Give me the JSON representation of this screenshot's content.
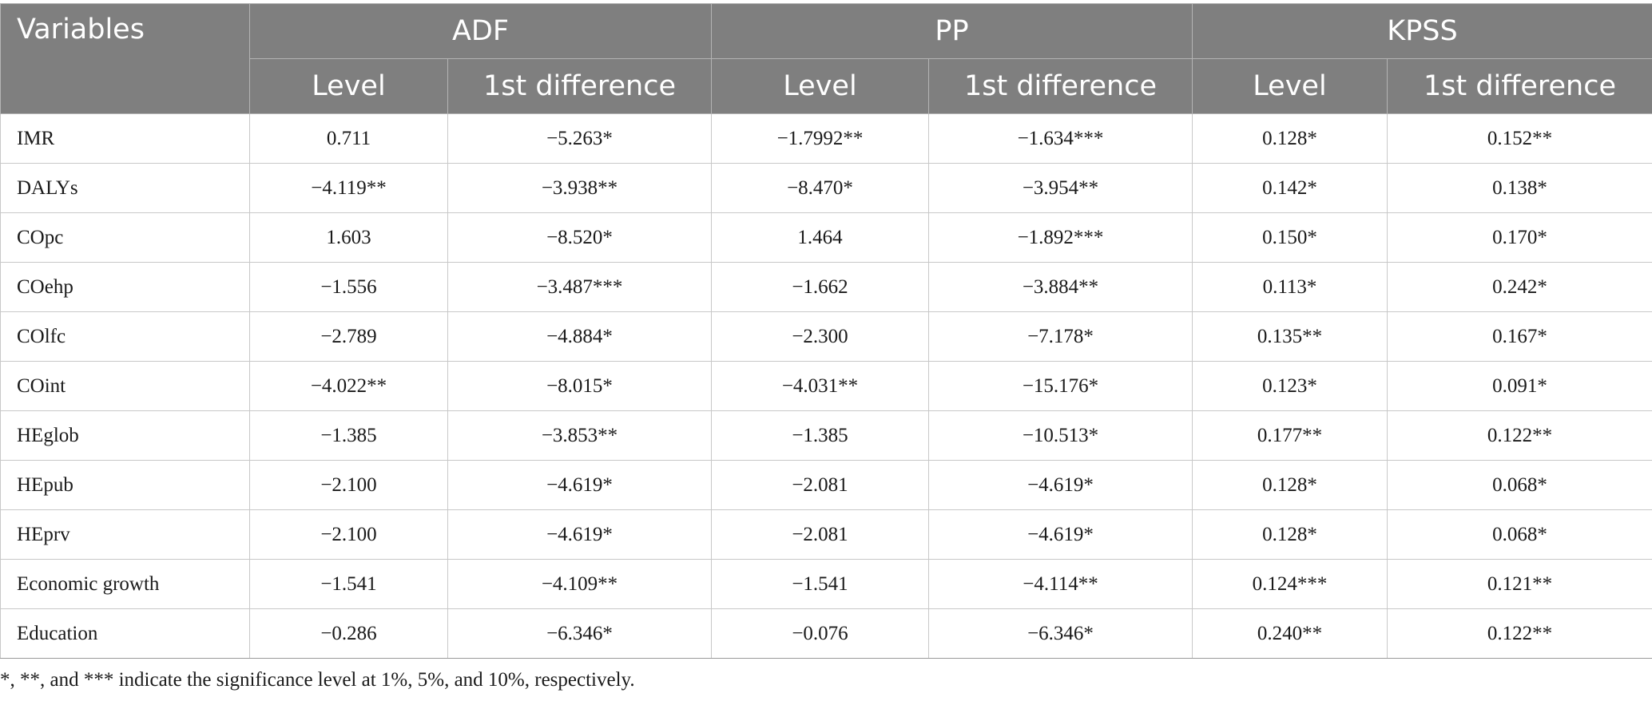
{
  "table": {
    "variables_header": "Variables",
    "groups": [
      "ADF",
      "PP",
      "KPSS"
    ],
    "subheaders": [
      "Level",
      "1st difference",
      "Level",
      "1st difference",
      "Level",
      "1st difference"
    ],
    "rows": [
      {
        "variable": "IMR",
        "values": [
          "0.711",
          "−5.263*",
          "−1.7992**",
          "−1.634***",
          "0.128*",
          "0.152**"
        ]
      },
      {
        "variable": "DALYs",
        "values": [
          "−4.119**",
          "−3.938**",
          "−8.470*",
          "−3.954**",
          "0.142*",
          "0.138*"
        ]
      },
      {
        "variable": "COpc",
        "values": [
          "1.603",
          "−8.520*",
          "1.464",
          "−1.892***",
          "0.150*",
          "0.170*"
        ]
      },
      {
        "variable": "COehp",
        "values": [
          "−1.556",
          "−3.487***",
          "−1.662",
          "−3.884**",
          "0.113*",
          "0.242*"
        ]
      },
      {
        "variable": "COlfc",
        "values": [
          "−2.789",
          "−4.884*",
          "−2.300",
          "−7.178*",
          "0.135**",
          "0.167*"
        ]
      },
      {
        "variable": "COint",
        "values": [
          "−4.022**",
          "−8.015*",
          "−4.031**",
          "−15.176*",
          "0.123*",
          "0.091*"
        ]
      },
      {
        "variable": "HEglob",
        "values": [
          "−1.385",
          "−3.853**",
          "−1.385",
          "−10.513*",
          "0.177**",
          "0.122**"
        ]
      },
      {
        "variable": "HEpub",
        "values": [
          "−2.100",
          "−4.619*",
          "−2.081",
          "−4.619*",
          "0.128*",
          "0.068*"
        ]
      },
      {
        "variable": "HEprv",
        "values": [
          "−2.100",
          "−4.619*",
          "−2.081",
          "−4.619*",
          "0.128*",
          "0.068*"
        ]
      },
      {
        "variable": "Economic growth",
        "values": [
          "−1.541",
          "−4.109**",
          "−1.541",
          "−4.114**",
          "0.124***",
          "0.121**"
        ]
      },
      {
        "variable": "Education",
        "values": [
          "−0.286",
          "−6.346*",
          "−0.076",
          "−6.346*",
          "0.240**",
          "0.122**"
        ]
      }
    ]
  },
  "footnote": "*, **, and *** indicate the significance level at 1%, 5%, and 10%, respectively.",
  "colors": {
    "header_bg": "#7f7f7f",
    "header_text": "#ffffff",
    "body_text": "#1a1a1a"
  }
}
